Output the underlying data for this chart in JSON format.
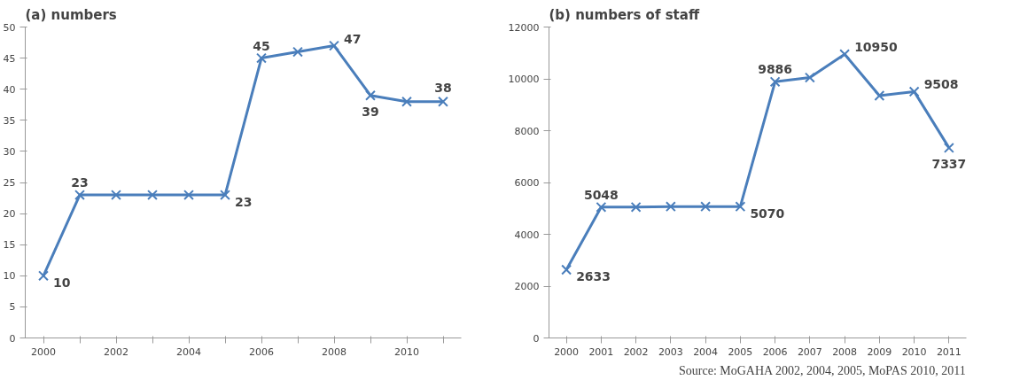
{
  "chart_data": [
    {
      "type": "line",
      "title": "(a) numbers",
      "categories": [
        "2000",
        null,
        "2002",
        null,
        "2004",
        null,
        "2006",
        null,
        "2008",
        null,
        "2010",
        null
      ],
      "series": [
        {
          "color": "#4a7ebb",
          "values": [
            10,
            23,
            23,
            23,
            23,
            23,
            45,
            46,
            47,
            39,
            38,
            38
          ],
          "value_labels": [
            "10",
            "23",
            null,
            null,
            null,
            "23",
            "45",
            null,
            "47",
            "39",
            null,
            "38"
          ]
        }
      ],
      "ylim": [
        0,
        50
      ],
      "yticks": [
        0,
        5,
        10,
        15,
        20,
        25,
        30,
        35,
        40,
        45,
        50
      ],
      "marker": "cross",
      "grid": false
    },
    {
      "type": "line",
      "title": "(b) numbers of staff",
      "categories": [
        "2000",
        "2001",
        "2002",
        "2003",
        "2004",
        "2005",
        "2006",
        "2007",
        "2008",
        "2009",
        "2010",
        "2011"
      ],
      "series": [
        {
          "color": "#4a7ebb",
          "values": [
            2633,
            5048,
            5050,
            5070,
            5070,
            5070,
            9886,
            10050,
            10950,
            9350,
            9508,
            7337
          ],
          "value_labels": [
            "2633",
            "5048",
            null,
            null,
            null,
            "5070",
            "9886",
            null,
            "10950",
            null,
            "9508",
            "7337"
          ]
        }
      ],
      "ylim": [
        0,
        12000
      ],
      "yticks": [
        0,
        2000,
        4000,
        6000,
        8000,
        10000,
        12000
      ],
      "marker": "cross",
      "grid": false,
      "annotations": [
        "Source: MoGAHA 2002, 2004, 2005, MoPAS 2010, 2011"
      ]
    }
  ]
}
